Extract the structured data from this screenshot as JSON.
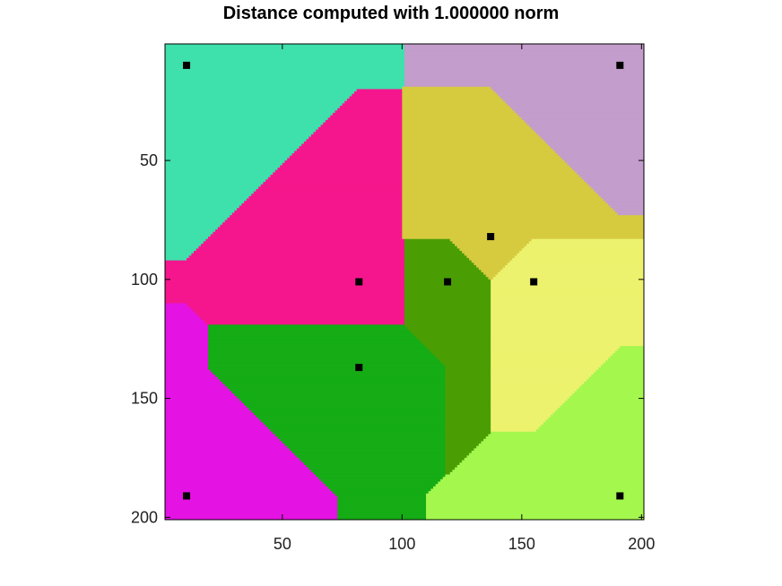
{
  "chart_data": {
    "type": "heatmap",
    "title": "Distance computed with 1.000000 norm",
    "xlabel": "",
    "ylabel": "",
    "xlim": [
      1,
      201
    ],
    "ylim": [
      201,
      1
    ],
    "y_axis_reversed": true,
    "grid": false,
    "legend": "none",
    "x_ticks": [
      50,
      100,
      150,
      200
    ],
    "y_ticks": [
      50,
      100,
      150,
      200
    ],
    "seeds": [
      {
        "x": 10,
        "y": 10,
        "color": "#3ee0ac"
      },
      {
        "x": 191,
        "y": 10,
        "color": "#c39dcb"
      },
      {
        "x": 137,
        "y": 82,
        "color": "#d6cb3f"
      },
      {
        "x": 82,
        "y": 101,
        "color": "#f5168d"
      },
      {
        "x": 119,
        "y": 101,
        "color": "#4a9e04"
      },
      {
        "x": 155,
        "y": 101,
        "color": "#ecf26d"
      },
      {
        "x": 82,
        "y": 137,
        "color": "#15ac15"
      },
      {
        "x": 10,
        "y": 191,
        "color": "#e413e3"
      },
      {
        "x": 191,
        "y": 191,
        "color": "#a4f74d"
      }
    ],
    "seed_marker_color": "#000000"
  }
}
